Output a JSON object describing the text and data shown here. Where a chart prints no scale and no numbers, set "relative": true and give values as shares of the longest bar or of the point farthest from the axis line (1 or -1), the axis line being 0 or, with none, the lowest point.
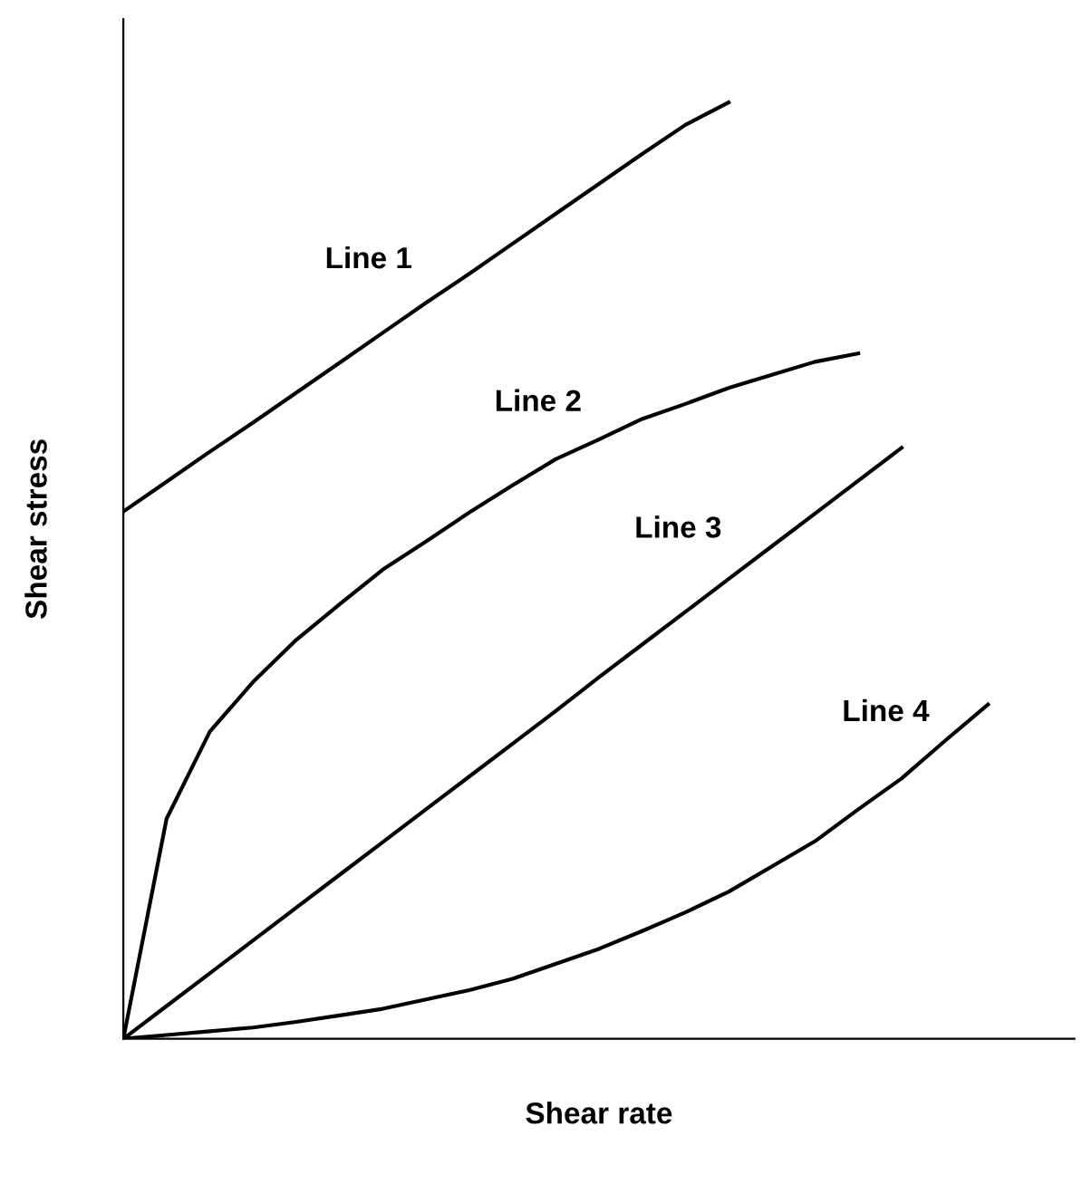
{
  "chart_data": {
    "type": "line",
    "relative": true,
    "xlabel": "Shear rate",
    "ylabel": "Shear stress",
    "grid": false,
    "legend": false,
    "marker": "none",
    "line_style": "solid",
    "categories": [
      null,
      null,
      null,
      null,
      null,
      null,
      null,
      null,
      null,
      null,
      null,
      null,
      null,
      null,
      null,
      null,
      null,
      null,
      null,
      null,
      null,
      null,
      null
    ],
    "series": [
      {
        "name": "Line 1",
        "color": "#000000",
        "values": [
          0.563,
          0.595,
          0.627,
          0.658,
          0.69,
          0.722,
          0.754,
          0.786,
          0.817,
          0.849,
          0.881,
          0.913,
          0.945,
          0.976,
          1.0,
          null,
          null,
          null,
          null,
          null,
          null,
          null,
          null
        ]
      },
      {
        "name": "Line 2",
        "color": "#000000",
        "values": [
          0,
          0.235,
          0.328,
          0.381,
          0.426,
          0.464,
          0.501,
          0.531,
          0.562,
          0.591,
          0.619,
          0.64,
          0.662,
          0.678,
          0.695,
          0.709,
          0.723,
          0.732,
          null,
          null,
          null,
          null,
          null
        ]
      },
      {
        "name": "Line 3",
        "color": "#000000",
        "values": [
          0,
          0.035,
          0.07,
          0.105,
          0.14,
          0.175,
          0.21,
          0.245,
          0.28,
          0.315,
          0.35,
          0.386,
          0.421,
          0.456,
          0.491,
          0.526,
          0.561,
          0.596,
          0.631,
          null,
          null,
          null,
          null
        ]
      },
      {
        "name": "Line 4",
        "color": "#000000",
        "values": [
          0,
          0.004,
          0.008,
          0.012,
          0.018,
          0.025,
          0.032,
          0.042,
          0.052,
          0.064,
          0.08,
          0.096,
          0.115,
          0.135,
          0.157,
          0.184,
          0.211,
          0.245,
          0.278,
          0.318,
          0.357,
          null,
          null
        ]
      }
    ]
  }
}
